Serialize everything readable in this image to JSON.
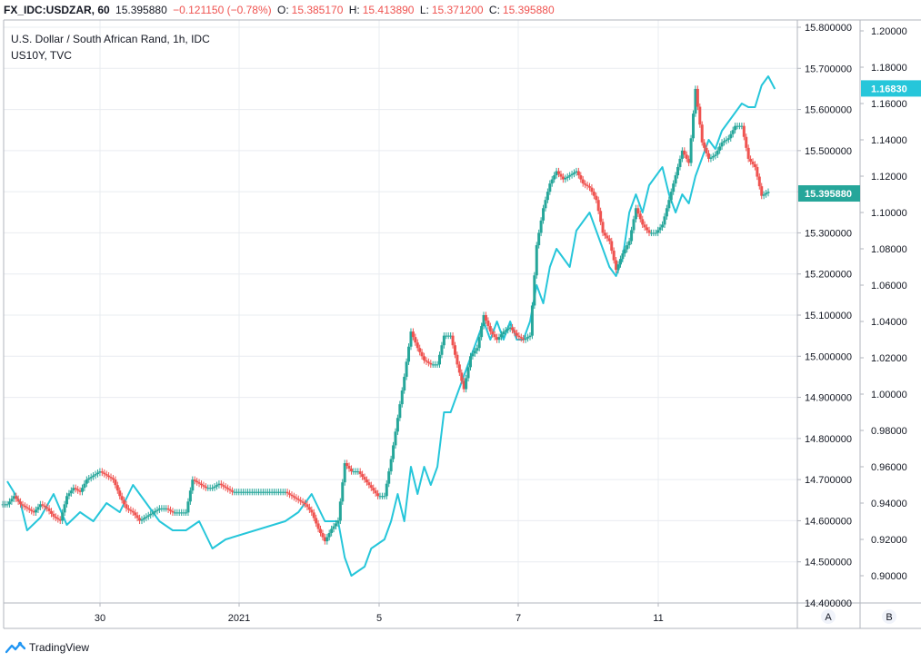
{
  "header": {
    "symbol": "FX_IDC:USDZAR, 60",
    "last": "15.395880",
    "change": "−0.121150 (−0.78%)",
    "o_label": "O:",
    "o_value": "15.385170",
    "h_label": "H:",
    "h_value": "15.413890",
    "l_label": "L:",
    "l_value": "15.371200",
    "c_label": "C:",
    "c_value": "15.395880"
  },
  "legend": {
    "main": "U.S. Dollar / South African Rand, 1h, IDC",
    "compare": "US10Y, TVC"
  },
  "footer": {
    "brand": "TradingView"
  },
  "axis_buttons": {
    "a": "A",
    "b": "B"
  },
  "colors": {
    "up": "#26a69a",
    "down": "#ef5350",
    "compare": "#26c6da",
    "grid": "#e9ecf0",
    "border": "#b2b5be"
  },
  "chart_data": {
    "type": "line",
    "x_ticks": [
      "30",
      "2021",
      "5",
      "7",
      "11"
    ],
    "y_axis_a": {
      "ticks": [
        "15.800000",
        "15.700000",
        "15.600000",
        "15.500000",
        "15.400000",
        "15.300000",
        "15.200000",
        "15.100000",
        "15.000000",
        "14.900000",
        "14.800000",
        "14.700000",
        "14.600000",
        "14.500000",
        "14.400000"
      ],
      "ylim": [
        14.4,
        15.8
      ]
    },
    "y_axis_b": {
      "ticks": [
        "1.20000",
        "1.18000",
        "1.16000",
        "1.14000",
        "1.12000",
        "1.10000",
        "1.08000",
        "1.06000",
        "1.04000",
        "1.02000",
        "1.00000",
        "0.98000",
        "0.96000",
        "0.94000",
        "0.92000",
        "0.90000"
      ],
      "ylim": [
        0.885,
        1.202
      ]
    },
    "last_labels": {
      "price": "15.395880",
      "compare": "1.16830"
    },
    "series": [
      {
        "name": "U.S. Dollar / South African Rand, 1h, IDC",
        "style": "candles",
        "values": [
          [
            0,
            14.64
          ],
          [
            0.5,
            14.66
          ],
          [
            1,
            14.64
          ],
          [
            1.5,
            14.63
          ],
          [
            2,
            14.62
          ],
          [
            2.5,
            14.64
          ],
          [
            3,
            14.63
          ],
          [
            3.5,
            14.61
          ],
          [
            4,
            14.6
          ],
          [
            4.5,
            14.66
          ],
          [
            5,
            14.68
          ],
          [
            5.5,
            14.67
          ],
          [
            6,
            14.7
          ],
          [
            6.5,
            14.71
          ],
          [
            7,
            14.72
          ],
          [
            7.5,
            14.71
          ],
          [
            8,
            14.7
          ],
          [
            8.5,
            14.66
          ],
          [
            9,
            14.63
          ],
          [
            9.5,
            14.62
          ],
          [
            10,
            14.6
          ],
          [
            10.5,
            14.61
          ],
          [
            11,
            14.62
          ],
          [
            11.5,
            14.63
          ],
          [
            12,
            14.63
          ],
          [
            12.5,
            14.62
          ],
          [
            13,
            14.62
          ],
          [
            13.5,
            14.62
          ],
          [
            14,
            14.7
          ],
          [
            14.5,
            14.69
          ],
          [
            15,
            14.68
          ],
          [
            15.5,
            14.68
          ],
          [
            16,
            14.69
          ],
          [
            16.5,
            14.68
          ],
          [
            17,
            14.67
          ],
          [
            17.5,
            14.67
          ],
          [
            18,
            14.67
          ],
          [
            18.5,
            14.67
          ],
          [
            19,
            14.67
          ],
          [
            19.5,
            14.67
          ],
          [
            20,
            14.67
          ],
          [
            20.5,
            14.67
          ],
          [
            21,
            14.67
          ],
          [
            21.5,
            14.66
          ],
          [
            22,
            14.65
          ],
          [
            22.5,
            14.64
          ],
          [
            23,
            14.62
          ],
          [
            23.5,
            14.58
          ],
          [
            24,
            14.55
          ],
          [
            24.5,
            14.58
          ],
          [
            25,
            14.6
          ],
          [
            25.5,
            14.74
          ],
          [
            26,
            14.72
          ],
          [
            26.5,
            14.72
          ],
          [
            27,
            14.7
          ],
          [
            27.5,
            14.68
          ],
          [
            28,
            14.66
          ],
          [
            28.5,
            14.66
          ],
          [
            29,
            14.75
          ],
          [
            29.5,
            14.85
          ],
          [
            30,
            14.95
          ],
          [
            30.5,
            15.06
          ],
          [
            31,
            15.02
          ],
          [
            31.5,
            14.99
          ],
          [
            32,
            14.98
          ],
          [
            32.5,
            14.98
          ],
          [
            33,
            15.05
          ],
          [
            33.5,
            15.05
          ],
          [
            34,
            14.98
          ],
          [
            34.5,
            14.92
          ],
          [
            35,
            15.0
          ],
          [
            35.5,
            15.02
          ],
          [
            36,
            15.1
          ],
          [
            36.5,
            15.06
          ],
          [
            37,
            15.04
          ],
          [
            37.5,
            15.06
          ],
          [
            38,
            15.07
          ],
          [
            38.5,
            15.05
          ],
          [
            39,
            15.04
          ],
          [
            39.5,
            15.05
          ],
          [
            40,
            15.27
          ],
          [
            40.5,
            15.36
          ],
          [
            41,
            15.42
          ],
          [
            41.5,
            15.45
          ],
          [
            42,
            15.43
          ],
          [
            42.5,
            15.44
          ],
          [
            43,
            15.45
          ],
          [
            43.5,
            15.42
          ],
          [
            44,
            15.41
          ],
          [
            44.5,
            15.38
          ],
          [
            45,
            15.3
          ],
          [
            45.5,
            15.28
          ],
          [
            46,
            15.21
          ],
          [
            46.5,
            15.25
          ],
          [
            47,
            15.28
          ],
          [
            47.5,
            15.36
          ],
          [
            48,
            15.32
          ],
          [
            48.5,
            15.3
          ],
          [
            49,
            15.3
          ],
          [
            49.5,
            15.32
          ],
          [
            50,
            15.38
          ],
          [
            50.5,
            15.44
          ],
          [
            51,
            15.5
          ],
          [
            51.5,
            15.47
          ],
          [
            52,
            15.65
          ],
          [
            52.5,
            15.52
          ],
          [
            53,
            15.48
          ],
          [
            53.5,
            15.49
          ],
          [
            54,
            15.52
          ],
          [
            54.5,
            15.53
          ],
          [
            55,
            15.56
          ],
          [
            55.5,
            15.56
          ],
          [
            56,
            15.48
          ],
          [
            56.5,
            15.46
          ],
          [
            57,
            15.39
          ],
          [
            57.5,
            15.4
          ]
        ]
      },
      {
        "name": "US10Y, TVC",
        "style": "line",
        "values": [
          [
            0,
            0.952
          ],
          [
            1,
            0.94
          ],
          [
            1.5,
            0.925
          ],
          [
            2.5,
            0.932
          ],
          [
            3.5,
            0.945
          ],
          [
            4.5,
            0.928
          ],
          [
            5.5,
            0.935
          ],
          [
            6.5,
            0.93
          ],
          [
            7.5,
            0.94
          ],
          [
            8.5,
            0.935
          ],
          [
            9.5,
            0.95
          ],
          [
            10.5,
            0.94
          ],
          [
            11.5,
            0.93
          ],
          [
            12.5,
            0.925
          ],
          [
            13.5,
            0.925
          ],
          [
            14.5,
            0.93
          ],
          [
            15.5,
            0.915
          ],
          [
            16.5,
            0.92
          ],
          [
            21,
            0.93
          ],
          [
            22,
            0.935
          ],
          [
            23,
            0.945
          ],
          [
            24,
            0.93
          ],
          [
            25,
            0.93
          ],
          [
            25.5,
            0.91
          ],
          [
            26,
            0.9
          ],
          [
            27,
            0.905
          ],
          [
            27.5,
            0.915
          ],
          [
            28.5,
            0.92
          ],
          [
            29,
            0.93
          ],
          [
            29.5,
            0.945
          ],
          [
            30,
            0.93
          ],
          [
            30.5,
            0.96
          ],
          [
            31,
            0.945
          ],
          [
            31.5,
            0.96
          ],
          [
            32,
            0.95
          ],
          [
            32.5,
            0.96
          ],
          [
            33,
            0.99
          ],
          [
            33.5,
            0.99
          ],
          [
            34,
            1.0
          ],
          [
            34.5,
            1.01
          ],
          [
            35,
            1.02
          ],
          [
            35.5,
            1.03
          ],
          [
            36,
            1.04
          ],
          [
            36.5,
            1.03
          ],
          [
            37,
            1.04
          ],
          [
            37.5,
            1.03
          ],
          [
            38,
            1.04
          ],
          [
            38.5,
            1.03
          ],
          [
            39,
            1.03
          ],
          [
            39.5,
            1.04
          ],
          [
            40,
            1.06
          ],
          [
            40.5,
            1.05
          ],
          [
            41,
            1.07
          ],
          [
            41.5,
            1.08
          ],
          [
            42,
            1.075
          ],
          [
            42.5,
            1.07
          ],
          [
            43,
            1.09
          ],
          [
            43.5,
            1.095
          ],
          [
            44,
            1.1
          ],
          [
            44.5,
            1.09
          ],
          [
            45,
            1.08
          ],
          [
            45.5,
            1.07
          ],
          [
            46,
            1.065
          ],
          [
            46.5,
            1.075
          ],
          [
            47,
            1.1
          ],
          [
            47.5,
            1.11
          ],
          [
            48,
            1.1
          ],
          [
            48.5,
            1.115
          ],
          [
            49,
            1.12
          ],
          [
            49.5,
            1.125
          ],
          [
            50,
            1.11
          ],
          [
            50.5,
            1.1
          ],
          [
            51,
            1.11
          ],
          [
            51.5,
            1.105
          ],
          [
            52,
            1.12
          ],
          [
            52.5,
            1.13
          ],
          [
            53,
            1.14
          ],
          [
            53.5,
            1.135
          ],
          [
            54,
            1.145
          ],
          [
            54.5,
            1.15
          ],
          [
            55,
            1.155
          ],
          [
            55.5,
            1.16
          ],
          [
            56,
            1.158
          ],
          [
            56.5,
            1.158
          ],
          [
            57,
            1.17
          ],
          [
            57.5,
            1.175
          ],
          [
            58,
            1.168
          ]
        ]
      }
    ]
  }
}
